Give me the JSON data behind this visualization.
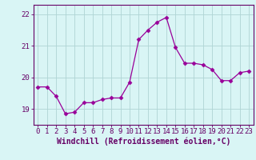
{
  "x": [
    0,
    1,
    2,
    3,
    4,
    5,
    6,
    7,
    8,
    9,
    10,
    11,
    12,
    13,
    14,
    15,
    16,
    17,
    18,
    19,
    20,
    21,
    22,
    23
  ],
  "y": [
    19.7,
    19.7,
    19.4,
    18.85,
    18.9,
    19.2,
    19.2,
    19.3,
    19.35,
    19.35,
    19.85,
    21.2,
    21.5,
    21.75,
    21.9,
    20.95,
    20.45,
    20.45,
    20.4,
    20.25,
    19.9,
    19.9,
    20.15,
    20.2
  ],
  "line_color": "#990099",
  "marker": "D",
  "marker_size": 2.5,
  "bg_color": "#d9f5f5",
  "grid_color": "#aed4d4",
  "xlabel": "Windchill (Refroidissement éolien,°C)",
  "ylim": [
    18.5,
    22.3
  ],
  "xlim": [
    -0.5,
    23.5
  ],
  "yticks": [
    19,
    20,
    21,
    22
  ],
  "xticks": [
    0,
    1,
    2,
    3,
    4,
    5,
    6,
    7,
    8,
    9,
    10,
    11,
    12,
    13,
    14,
    15,
    16,
    17,
    18,
    19,
    20,
    21,
    22,
    23
  ],
  "xtick_labels": [
    "0",
    "1",
    "2",
    "3",
    "4",
    "5",
    "6",
    "7",
    "8",
    "9",
    "10",
    "11",
    "12",
    "13",
    "14",
    "15",
    "16",
    "17",
    "18",
    "19",
    "20",
    "21",
    "22",
    "23"
  ],
  "tick_color": "#660066",
  "label_color": "#660066",
  "label_fontsize": 7.0,
  "tick_fontsize": 6.5
}
